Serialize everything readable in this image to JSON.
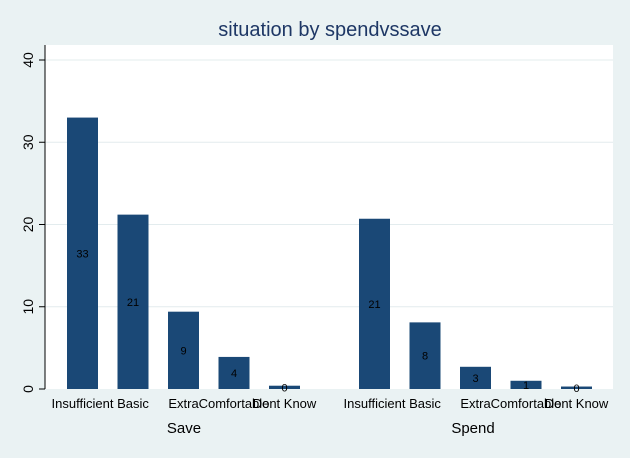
{
  "chart_data": {
    "type": "bar",
    "title": "situation by spendvssave",
    "xlabel": "",
    "ylabel": "",
    "ylim": [
      0,
      40
    ],
    "yticks": [
      0,
      10,
      20,
      30,
      40
    ],
    "grid": true,
    "bar_color": "#1a4876",
    "background_color": "#eaf2f3",
    "plot_background_color": "#ffffff",
    "categories": [
      "Insufficient",
      "Basic",
      "Extra",
      "Comfortable",
      "Dont Know"
    ],
    "groups": [
      {
        "name": "Save",
        "values": [
          33,
          21.2,
          9.4,
          3.9,
          0.4
        ],
        "labels": [
          "33",
          "21",
          "9",
          "4",
          "0"
        ]
      },
      {
        "name": "Spend",
        "values": [
          20.7,
          8.1,
          2.7,
          1.0,
          0.3
        ],
        "labels": [
          "21",
          "8",
          "3",
          "1",
          "0"
        ]
      }
    ]
  }
}
